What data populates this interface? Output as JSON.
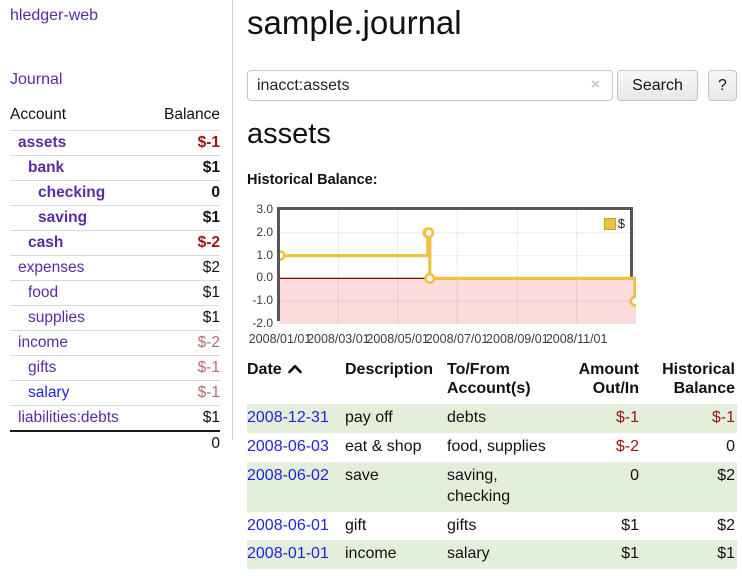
{
  "app": {
    "title": "hledger-web"
  },
  "colors": {
    "link_purple": "#5a2ca0",
    "link_blue": "#2222dd",
    "negative": "#9b1313",
    "negative_soft": "#bb6a6a",
    "row_green": "#e3efdb",
    "chart_line": "#edc240",
    "chart_negative_region": "#fbdbdb",
    "chart_zero_line": "#8b0000"
  },
  "sidebar": {
    "nav": {
      "journal_label": "Journal"
    },
    "accounts": {
      "headers": {
        "account": "Account",
        "balance": "Balance"
      },
      "rows": [
        {
          "name": "assets",
          "depth": 1,
          "bold": true,
          "link_color": "purple",
          "balance": "$-1",
          "balance_color": "neg-strong"
        },
        {
          "name": "bank",
          "depth": 2,
          "bold": true,
          "link_color": "purple",
          "balance": "$1",
          "balance_color": "black"
        },
        {
          "name": "checking",
          "depth": 3,
          "bold": true,
          "link_color": "purple",
          "balance": "0",
          "balance_color": "black"
        },
        {
          "name": "saving",
          "depth": 3,
          "bold": true,
          "link_color": "purple",
          "balance": "$1",
          "balance_color": "black"
        },
        {
          "name": "cash",
          "depth": 2,
          "bold": true,
          "link_color": "purple",
          "balance": "$-2",
          "balance_color": "neg-strong"
        },
        {
          "name": "expenses",
          "depth": 1,
          "bold": false,
          "link_color": "purple",
          "balance": "$2",
          "balance_color": "black"
        },
        {
          "name": "food",
          "depth": 2,
          "bold": false,
          "link_color": "purple",
          "balance": "$1",
          "balance_color": "black"
        },
        {
          "name": "supplies",
          "depth": 2,
          "bold": false,
          "link_color": "purple",
          "balance": "$1",
          "balance_color": "black"
        },
        {
          "name": "income",
          "depth": 1,
          "bold": false,
          "link_color": "purple",
          "balance": "$-2",
          "balance_color": "neg-soft"
        },
        {
          "name": "gifts",
          "depth": 2,
          "bold": false,
          "link_color": "purple",
          "balance": "$-1",
          "balance_color": "neg-soft"
        },
        {
          "name": "salary",
          "depth": 2,
          "bold": false,
          "link_color": "blue",
          "balance": "$-1",
          "balance_color": "neg-soft"
        },
        {
          "name": "liabilities:debts",
          "depth": 1,
          "bold": false,
          "link_color": "purple",
          "balance": "$1",
          "balance_color": "black"
        }
      ],
      "total": "0"
    }
  },
  "main": {
    "title": "sample.journal",
    "search": {
      "value": "inacct:assets",
      "clear_label": "×",
      "button_label": "Search",
      "help_label": "?"
    },
    "account_heading": "assets",
    "chart_heading": "Historical Balance:"
  },
  "chart_data": {
    "type": "line",
    "title": "Historical Balance:",
    "step": true,
    "series": [
      {
        "name": "$",
        "color": "#edc240",
        "points": [
          [
            "2008-01-01",
            1.0
          ],
          [
            "2008-06-01",
            2.0
          ],
          [
            "2008-06-02",
            2.0
          ],
          [
            "2008-06-03",
            0.0
          ],
          [
            "2008-12-31",
            -1.0
          ]
        ]
      }
    ],
    "x_range": [
      "2008-01-01",
      "2009-01-01"
    ],
    "x_ticks": [
      {
        "date": "2008-01-01",
        "label": "2008/01/01"
      },
      {
        "date": "2008-03-01",
        "label": "2008/03/01"
      },
      {
        "date": "2008-05-01",
        "label": "2008/05/01"
      },
      {
        "date": "2008-07-01",
        "label": "2008/07/01"
      },
      {
        "date": "2008-09-01",
        "label": "2008/09/01"
      },
      {
        "date": "2008-11-01",
        "label": "2008/11/01"
      }
    ],
    "y_ticks": [
      "3.0",
      "2.0",
      "1.0",
      "0.0",
      "-1.0",
      "-2.0"
    ],
    "ylim": [
      -2.0,
      3.0
    ],
    "legend_position": "top-right",
    "grid": true,
    "negative_region_shaded": true
  },
  "transactions": {
    "headers": {
      "date": "Date",
      "description": "Description",
      "accounts": "To/From Account(s)",
      "amount": "Amount Out/In",
      "balance": "Historical Balance"
    },
    "rows": [
      {
        "date": "2008-12-31",
        "description": "pay off",
        "accounts": "debts",
        "amount": "$-1",
        "amount_neg": true,
        "balance": "$-1",
        "balance_neg": true
      },
      {
        "date": "2008-06-03",
        "description": "eat & shop",
        "accounts": "food, supplies",
        "amount": "$-2",
        "amount_neg": true,
        "balance": "0",
        "balance_neg": false
      },
      {
        "date": "2008-06-02",
        "description": "save",
        "accounts": "saving, checking",
        "amount": "0",
        "amount_neg": false,
        "balance": "$2",
        "balance_neg": false
      },
      {
        "date": "2008-06-01",
        "description": "gift",
        "accounts": "gifts",
        "amount": "$1",
        "amount_neg": false,
        "balance": "$2",
        "balance_neg": false
      },
      {
        "date": "2008-01-01",
        "description": "income",
        "accounts": "salary",
        "amount": "$1",
        "amount_neg": false,
        "balance": "$1",
        "balance_neg": false
      }
    ]
  }
}
